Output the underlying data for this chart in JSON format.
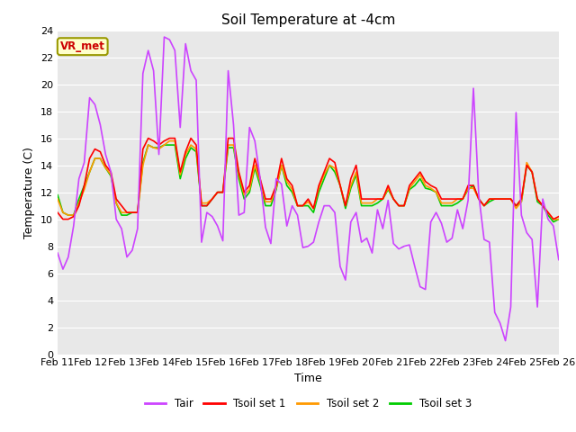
{
  "title": "Soil Temperature at -4cm",
  "xlabel": "Time",
  "ylabel": "Temperature (C)",
  "ylim": [
    0,
    24
  ],
  "yticks": [
    0,
    2,
    4,
    6,
    8,
    10,
    12,
    14,
    16,
    18,
    20,
    22,
    24
  ],
  "bg_color": "#e8e8e8",
  "annotation_text": "VR_met",
  "annotation_fg": "#cc0000",
  "annotation_bg": "#ffffcc",
  "annotation_border": "#999900",
  "colors": {
    "Tair": "#cc44ff",
    "Tsoil1": "#ff0000",
    "Tsoil2": "#ff9900",
    "Tsoil3": "#00cc00"
  },
  "legend_labels": [
    "Tair",
    "Tsoil set 1",
    "Tsoil set 2",
    "Tsoil set 3"
  ],
  "x_labels": [
    "Feb 11",
    "Feb 12",
    "Feb 13",
    "Feb 14",
    "Feb 15",
    "Feb 16",
    "Feb 17",
    "Feb 18",
    "Feb 19",
    "Feb 20",
    "Feb 21",
    "Feb 22",
    "Feb 23",
    "Feb 24",
    "Feb 25",
    "Feb 26"
  ],
  "Tair": [
    7.5,
    6.3,
    7.2,
    9.5,
    13.0,
    14.2,
    19.0,
    18.5,
    17.0,
    14.8,
    13.5,
    10.0,
    9.3,
    7.2,
    7.7,
    9.3,
    20.8,
    22.5,
    21.0,
    14.8,
    23.5,
    23.3,
    22.5,
    16.8,
    23.0,
    21.0,
    20.3,
    8.3,
    10.5,
    10.2,
    9.5,
    8.4,
    21.0,
    17.0,
    10.3,
    10.5,
    16.8,
    15.8,
    13.0,
    9.4,
    8.2,
    13.0,
    12.6,
    9.5,
    11.0,
    10.3,
    7.9,
    8.0,
    8.3,
    9.8,
    11.0,
    11.0,
    10.5,
    6.5,
    5.5,
    9.8,
    10.5,
    8.3,
    8.6,
    7.5,
    10.7,
    9.3,
    11.4,
    8.2,
    7.8,
    8.0,
    8.1,
    6.5,
    5.0,
    4.8,
    9.8,
    10.5,
    9.7,
    8.3,
    8.6,
    10.7,
    9.3,
    11.4,
    19.7,
    11.8,
    8.5,
    8.3,
    3.1,
    2.3,
    1.0,
    3.5,
    17.9,
    10.3,
    9.0,
    8.5,
    3.5,
    11.5,
    10.0,
    9.5,
    7.0
  ],
  "Tsoil1": [
    10.5,
    10.0,
    10.0,
    10.2,
    11.0,
    12.5,
    14.5,
    15.2,
    15.0,
    14.0,
    13.5,
    11.5,
    11.0,
    10.5,
    10.5,
    10.5,
    15.2,
    16.0,
    15.8,
    15.5,
    15.8,
    16.0,
    16.0,
    13.5,
    15.0,
    16.0,
    15.5,
    11.0,
    11.0,
    11.5,
    12.0,
    12.0,
    16.0,
    16.0,
    13.5,
    12.0,
    12.5,
    14.5,
    13.0,
    11.5,
    11.5,
    12.5,
    14.5,
    13.0,
    12.5,
    11.0,
    11.0,
    11.5,
    10.8,
    12.5,
    13.5,
    14.5,
    14.2,
    12.5,
    11.0,
    13.0,
    14.0,
    11.5,
    11.5,
    11.5,
    11.5,
    11.5,
    12.5,
    11.5,
    11.0,
    11.0,
    12.5,
    13.0,
    13.5,
    12.8,
    12.5,
    12.3,
    11.5,
    11.5,
    11.5,
    11.5,
    11.5,
    12.5,
    12.5,
    11.5,
    11.0,
    11.5,
    11.5,
    11.5,
    11.5,
    11.5,
    11.0,
    11.5,
    14.0,
    13.5,
    11.5,
    11.0,
    10.5,
    10.0,
    10.2
  ],
  "Tsoil2": [
    11.5,
    10.5,
    10.3,
    10.3,
    11.2,
    12.2,
    13.5,
    14.5,
    14.5,
    13.8,
    13.3,
    11.2,
    10.5,
    10.5,
    10.5,
    10.5,
    14.0,
    15.5,
    15.3,
    15.2,
    15.5,
    15.8,
    15.8,
    13.3,
    14.8,
    15.5,
    15.2,
    11.2,
    11.2,
    11.5,
    12.0,
    12.0,
    15.5,
    15.5,
    13.3,
    11.8,
    12.2,
    14.0,
    12.8,
    11.3,
    11.3,
    12.3,
    14.0,
    12.8,
    12.2,
    11.0,
    11.0,
    11.3,
    10.8,
    12.3,
    13.3,
    14.0,
    13.8,
    12.5,
    11.0,
    12.5,
    13.5,
    11.2,
    11.2,
    11.2,
    11.5,
    11.5,
    12.3,
    11.5,
    11.0,
    11.0,
    12.3,
    12.8,
    13.3,
    12.5,
    12.3,
    12.0,
    11.2,
    11.2,
    11.2,
    11.5,
    11.5,
    12.3,
    12.3,
    11.5,
    11.0,
    11.5,
    11.5,
    11.5,
    11.5,
    11.5,
    10.8,
    11.3,
    14.2,
    13.5,
    11.5,
    11.0,
    10.5,
    10.0,
    10.0
  ],
  "Tsoil3": [
    11.8,
    10.5,
    10.3,
    10.3,
    11.5,
    12.5,
    13.5,
    14.5,
    14.5,
    13.8,
    13.2,
    11.2,
    10.3,
    10.3,
    10.5,
    10.5,
    14.2,
    15.5,
    15.3,
    15.3,
    15.5,
    15.5,
    15.5,
    13.0,
    14.5,
    15.3,
    15.0,
    11.0,
    11.0,
    11.5,
    12.0,
    12.0,
    15.3,
    15.3,
    13.0,
    11.5,
    12.0,
    13.8,
    12.5,
    11.0,
    11.0,
    12.2,
    14.0,
    12.5,
    12.0,
    11.0,
    11.0,
    11.0,
    10.5,
    12.0,
    13.0,
    14.0,
    13.5,
    12.5,
    10.8,
    12.3,
    13.3,
    11.0,
    11.0,
    11.0,
    11.2,
    11.5,
    12.2,
    11.5,
    11.0,
    11.0,
    12.2,
    12.5,
    13.0,
    12.3,
    12.2,
    12.0,
    11.0,
    11.0,
    11.0,
    11.2,
    11.5,
    12.2,
    12.5,
    11.5,
    11.0,
    11.3,
    11.5,
    11.5,
    11.5,
    11.5,
    11.0,
    11.3,
    14.0,
    13.5,
    11.3,
    11.0,
    10.3,
    9.8,
    10.0
  ]
}
